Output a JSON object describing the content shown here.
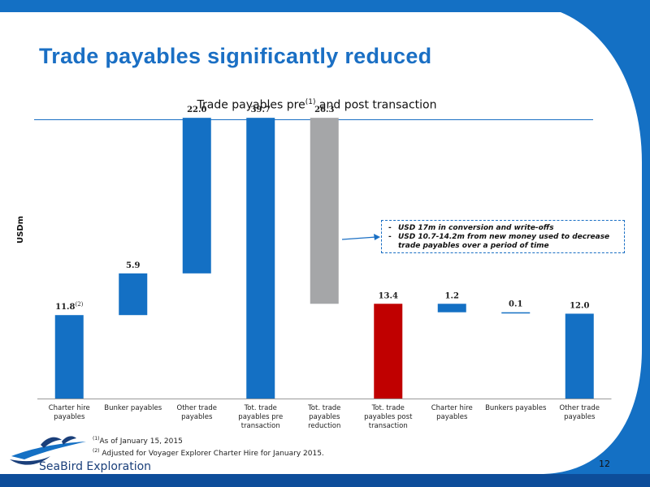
{
  "slide": {
    "title": "Trade payables significantly reduced",
    "subtitle_main": "Trade payables pre",
    "subtitle_sup": "(1)",
    "subtitle_rest": " and post transaction",
    "page_number": "12"
  },
  "colors": {
    "brand_blue": "#1a6fc4",
    "bar_blue": "#1470c4",
    "bar_gray": "#a5a6a8",
    "bar_red": "#c00000",
    "dark_navy": "#0d4d9a"
  },
  "chart_data": {
    "type": "bar",
    "subtype": "waterfall",
    "title": "Trade payables pre(1) and post transaction",
    "ylabel": "USDm",
    "ylim": [
      0,
      45
    ],
    "grid": false,
    "legend": "none",
    "categories": [
      "Charter hire payables",
      "Bunker payables",
      "Other trade payables",
      "Tot. trade payables pre transaction",
      "Tot. trade payables reduction",
      "Tot. trade payables post transaction",
      "Charter hire payables",
      "Bunkers payables",
      "Other trade payables"
    ],
    "bars": [
      {
        "label": "11.8",
        "label_sup": "(2)",
        "base": 0,
        "value": 11.8,
        "color": "#1470c4"
      },
      {
        "label": "5.9",
        "label_sup": "",
        "base": 11.8,
        "value": 5.9,
        "color": "#1470c4"
      },
      {
        "label": "22.0",
        "label_sup": "",
        "base": 17.7,
        "value": 22.0,
        "color": "#1470c4"
      },
      {
        "label": "39.7",
        "label_sup": "",
        "base": 0,
        "value": 39.7,
        "color": "#1470c4"
      },
      {
        "label": "26.3",
        "label_sup": "",
        "base": 13.4,
        "value": 26.3,
        "color": "#a5a6a8"
      },
      {
        "label": "13.4",
        "label_sup": "",
        "base": 0,
        "value": 13.4,
        "color": "#c00000"
      },
      {
        "label": "1.2",
        "label_sup": "",
        "base": 12.2,
        "value": 1.2,
        "color": "#1470c4"
      },
      {
        "label": "0.1",
        "label_sup": "",
        "base": 12.1,
        "value": 0.1,
        "color": "#1470c4"
      },
      {
        "label": "12.0",
        "label_sup": "",
        "base": 0,
        "value": 12.0,
        "color": "#1470c4"
      }
    ]
  },
  "annotation": {
    "items": [
      "USD 17m in conversion and write-offs",
      "USD 10.7-14.2m from new money used to decrease trade payables over a period of time"
    ]
  },
  "footnotes": {
    "n1_sup": "(1)",
    "n1_text": "As of January 15, 2015",
    "n2_sup": "(2)",
    "n2_text": "Adjusted for Voyager Explorer Charter Hire for January 2015."
  },
  "logo": {
    "text": "SeaBird Exploration"
  }
}
